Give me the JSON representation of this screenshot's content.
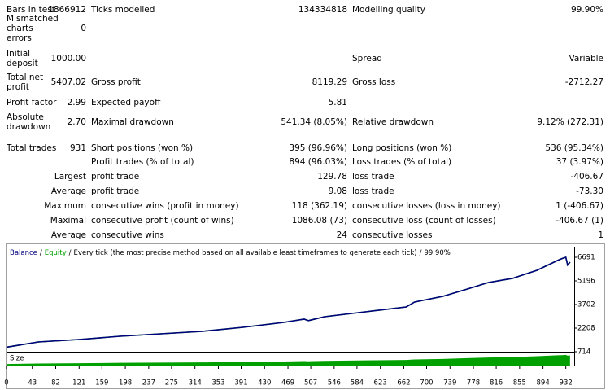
{
  "table": {
    "rows": [
      [
        "Bars in test",
        "1866912",
        "Ticks modelled",
        "134334818",
        "Modelling quality",
        "99.90%"
      ],
      [
        "Mismatched charts errors",
        "0",
        null,
        null,
        null,
        null
      ],
      [
        "Initial deposit",
        "1000.00",
        null,
        null,
        "Spread",
        "Variable"
      ],
      [
        "Total net profit",
        "5407.02",
        "Gross profit",
        "8119.29",
        "Gross loss",
        "-2712.27"
      ],
      [
        "Profit factor",
        "2.99",
        "Expected payoff",
        "5.81",
        null,
        null
      ],
      [
        "Absolute drawdown",
        "2.70",
        "Maximal drawdown",
        "541.34 (8.05%)",
        "Relative drawdown",
        "9.12% (272.31)"
      ],
      [
        "Total trades",
        "931",
        "Short positions (won %)",
        "395 (96.96%)",
        "Long positions (won %)",
        "536 (95.34%)"
      ],
      [
        null,
        null,
        "Profit trades (% of total)",
        "894 (96.03%)",
        "Loss trades (% of total)",
        "37 (3.97%)"
      ],
      [
        null,
        "Largest",
        "profit trade",
        "129.78",
        "loss trade",
        "-406.67"
      ],
      [
        null,
        "Average",
        "profit trade",
        "9.08",
        "loss trade",
        "-73.30"
      ],
      [
        null,
        "Maximum",
        "consecutive wins (profit in money)",
        "118 (362.19)",
        "consecutive losses (loss in money)",
        "1 (-406.67)"
      ],
      [
        null,
        "Maximal",
        "consecutive profit (count of wins)",
        "1086.08 (73)",
        "consecutive loss (count of losses)",
        "-406.67 (1)"
      ],
      [
        null,
        "Average",
        "consecutive wins",
        "24",
        "consecutive losses",
        "1"
      ]
    ]
  },
  "chart_data": [
    {
      "type": "line",
      "separator": "/",
      "mode": "Every tick (the most precise method based on all available least timeframes to generate each tick)",
      "quality": "99.90%",
      "x": [
        0,
        53,
        121,
        189,
        257,
        326,
        394,
        462,
        496,
        503,
        530,
        598,
        666,
        680,
        727,
        768,
        803,
        843,
        884,
        918,
        925,
        932,
        935,
        939
      ],
      "series": [
        {
          "name": "Balance",
          "color": "#00007f",
          "values": [
            1000,
            1332,
            1487,
            1693,
            1848,
            2002,
            2260,
            2569,
            2775,
            2680,
            2930,
            3239,
            3548,
            3857,
            4218,
            4682,
            5094,
            5352,
            5867,
            6485,
            6600,
            6691,
            6200,
            6380
          ]
        },
        {
          "name": "Equity",
          "color": "#00a000",
          "values": [
            1000,
            1332,
            1487,
            1693,
            1848,
            2002,
            2260,
            2569,
            2775,
            2680,
            2930,
            3239,
            3548,
            3857,
            4218,
            4682,
            5094,
            5352,
            5867,
            6485,
            6600,
            6691,
            6200,
            6380
          ]
        }
      ],
      "xlim": [
        0,
        946
      ],
      "ylim": [
        714,
        7360
      ],
      "yticks": [
        6691,
        5196,
        3702,
        2208,
        714
      ]
    },
    {
      "type": "area",
      "title": "Size",
      "x": [
        0,
        53,
        121,
        189,
        257,
        326,
        394,
        462,
        496,
        503,
        530,
        598,
        666,
        680,
        727,
        768,
        803,
        843,
        884,
        918,
        925,
        932,
        935,
        939
      ],
      "values": [
        0.12,
        0.16,
        0.18,
        0.21,
        0.23,
        0.24,
        0.28,
        0.31,
        0.34,
        0.33,
        0.36,
        0.4,
        0.43,
        0.47,
        0.51,
        0.57,
        0.62,
        0.65,
        0.72,
        0.79,
        0.8,
        0.82,
        0.76,
        0.78
      ],
      "color": "#00a000",
      "xlim": [
        0,
        946
      ],
      "ylim": [
        0,
        1
      ],
      "xticks": [
        0,
        43,
        82,
        121,
        159,
        198,
        237,
        275,
        314,
        353,
        391,
        430,
        469,
        507,
        546,
        584,
        623,
        662,
        700,
        739,
        778,
        816,
        855,
        894,
        932
      ]
    }
  ]
}
